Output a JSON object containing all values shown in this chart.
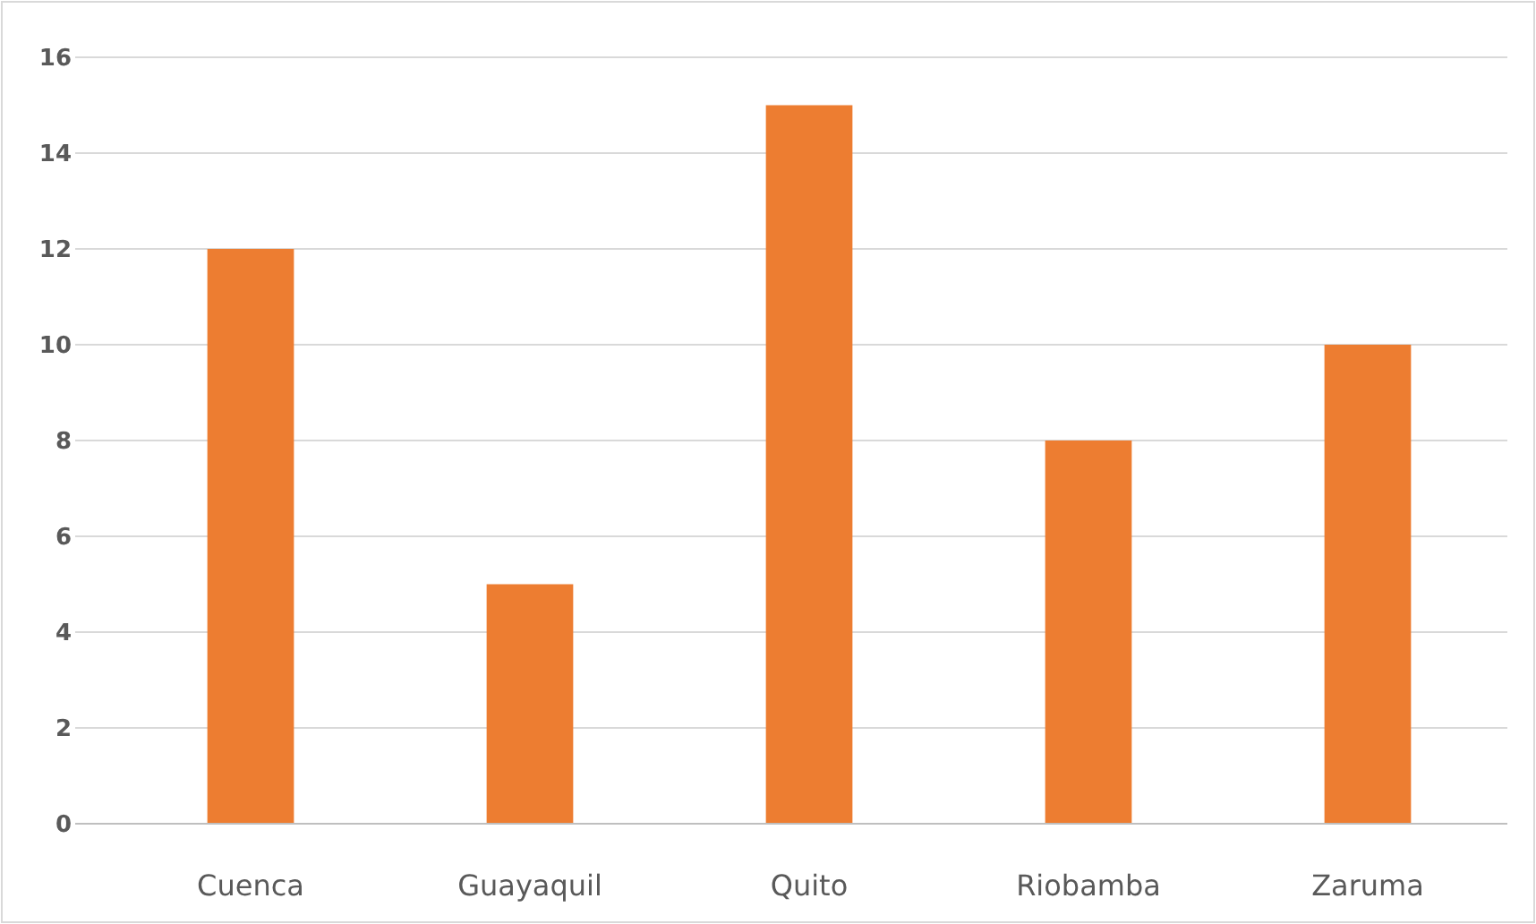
{
  "chart_data": {
    "type": "bar",
    "categories": [
      "Cuenca",
      "Guayaquil",
      "Quito",
      "Riobamba",
      "Zaruma"
    ],
    "values": [
      12,
      5,
      15,
      8,
      10
    ],
    "color": "#ed7d31",
    "ylim": [
      0,
      16
    ],
    "yticks": [
      0,
      2,
      4,
      6,
      8,
      10,
      12,
      14,
      16
    ],
    "grid": "y"
  }
}
